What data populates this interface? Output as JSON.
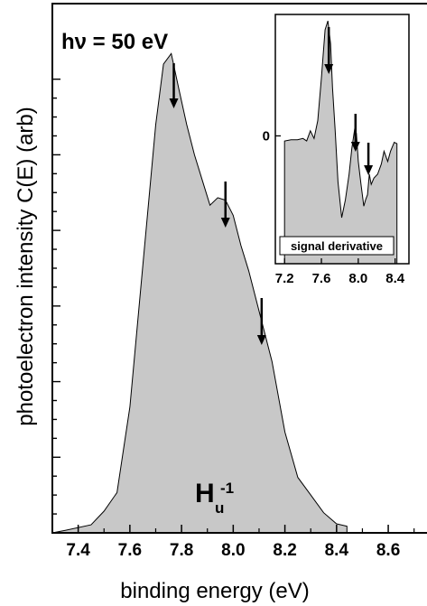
{
  "chart_data": [
    {
      "type": "area",
      "xlabel": "binding energy (eV)",
      "ylabel": "photoelectron intensity C(E) (arb)",
      "xlim": [
        7.3,
        8.75
      ],
      "ylim": [
        0,
        1.05
      ],
      "x_ticks": [
        "7.4",
        "7.6",
        "7.8",
        "8.0",
        "8.2",
        "8.4",
        "8.6"
      ],
      "x_tick_values": [
        7.4,
        7.6,
        7.8,
        8.0,
        8.2,
        8.4,
        8.6
      ],
      "y_tick_labels_shown": false,
      "annotations": {
        "photon_energy": "hν = 50 eV",
        "state_main": "H",
        "state_sub": "u",
        "state_sup": "-1"
      },
      "peak_arrows_x": [
        7.77,
        7.97,
        8.11
      ],
      "fill_color": "#c8c8c8",
      "x": [
        7.3,
        7.35,
        7.45,
        7.5,
        7.55,
        7.6,
        7.65,
        7.7,
        7.73,
        7.76,
        7.79,
        7.82,
        7.85,
        7.88,
        7.91,
        7.94,
        7.97,
        8.0,
        8.03,
        8.06,
        8.09,
        8.12,
        8.15,
        8.2,
        8.25,
        8.3,
        8.35,
        8.4,
        8.44
      ],
      "values": [
        0.0,
        0.005,
        0.016,
        0.043,
        0.08,
        0.25,
        0.53,
        0.81,
        0.93,
        0.951,
        0.88,
        0.81,
        0.75,
        0.7,
        0.65,
        0.665,
        0.66,
        0.63,
        0.57,
        0.52,
        0.46,
        0.4,
        0.34,
        0.2,
        0.11,
        0.075,
        0.04,
        0.018,
        0.013
      ]
    },
    {
      "type": "area",
      "title": "signal derivative",
      "xlim": [
        7.1,
        8.55
      ],
      "x_ticks": [
        "7.2",
        "7.6",
        "8.0",
        "8.4"
      ],
      "x_tick_values": [
        7.2,
        7.6,
        8.0,
        8.4
      ],
      "y_ticks": [
        "0"
      ],
      "y_tick_values": [
        0
      ],
      "ylim": [
        -1.0,
        0.95
      ],
      "peak_arrows_x": [
        7.68,
        7.97,
        8.11
      ],
      "fill_color": "#c8c8c8",
      "x": [
        7.2,
        7.27,
        7.34,
        7.4,
        7.44,
        7.48,
        7.52,
        7.56,
        7.6,
        7.64,
        7.67,
        7.7,
        7.72,
        7.75,
        7.78,
        7.82,
        7.86,
        7.9,
        7.93,
        7.96,
        7.98,
        8.0,
        8.03,
        8.06,
        8.08,
        8.1,
        8.12,
        8.14,
        8.17,
        8.21,
        8.25,
        8.28,
        8.32,
        8.35,
        8.39,
        8.42
      ],
      "values": [
        -0.04,
        -0.03,
        -0.03,
        -0.02,
        -0.04,
        0.04,
        -0.02,
        0.12,
        0.45,
        0.83,
        0.9,
        0.72,
        0.38,
        0.04,
        -0.36,
        -0.64,
        -0.5,
        -0.3,
        -0.1,
        0.05,
        0.02,
        -0.2,
        -0.38,
        -0.55,
        -0.5,
        -0.46,
        -0.3,
        -0.38,
        -0.33,
        -0.3,
        -0.22,
        -0.12,
        -0.2,
        -0.12,
        -0.05,
        -0.06
      ]
    }
  ]
}
